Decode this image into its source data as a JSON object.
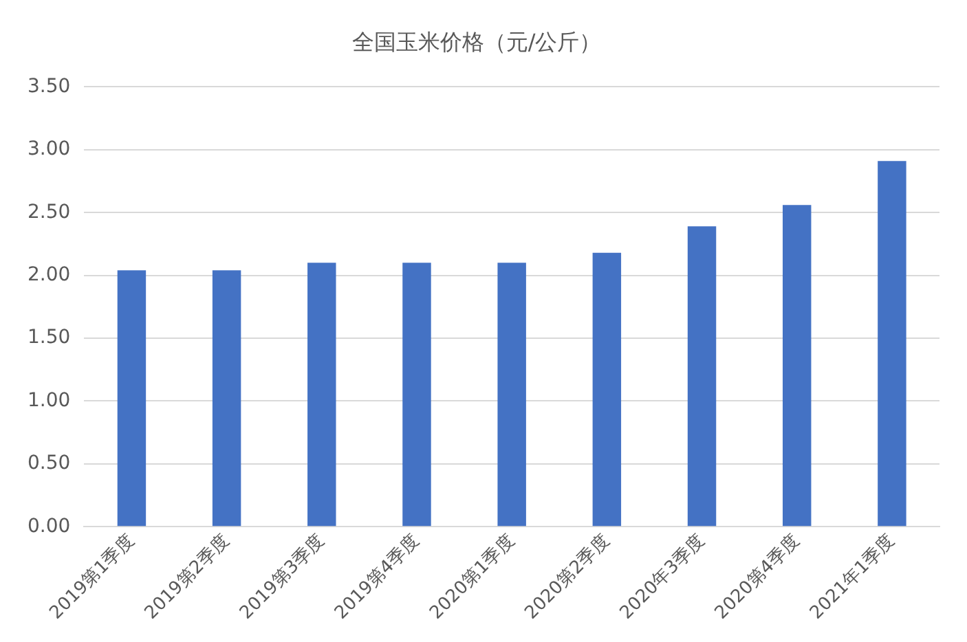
{
  "chart_data": {
    "type": "bar",
    "title": "全国玉米价格（元/公斤）",
    "categories": [
      "2019第1季度",
      "2019第2季度",
      "2019第3季度",
      "2019第4季度",
      "2020第1季度",
      "2020第2季度",
      "2020年3季度",
      "2020第4季度",
      "2021年1季度"
    ],
    "values": [
      2.04,
      2.04,
      2.1,
      2.1,
      2.1,
      2.18,
      2.39,
      2.56,
      2.91
    ],
    "color": "#4472c4",
    "ylim": [
      0,
      3.5
    ],
    "yticks": [
      {
        "value": 0,
        "label": "0.00"
      },
      {
        "value": 0.5,
        "label": "0.50"
      },
      {
        "value": 1,
        "label": "1.00"
      },
      {
        "value": 1.5,
        "label": "1.50"
      },
      {
        "value": 2,
        "label": "2.00"
      },
      {
        "value": 2.5,
        "label": "2.50"
      },
      {
        "value": 3,
        "label": "3.00"
      },
      {
        "value": 3.5,
        "label": "3.50"
      }
    ],
    "grid": "y"
  }
}
